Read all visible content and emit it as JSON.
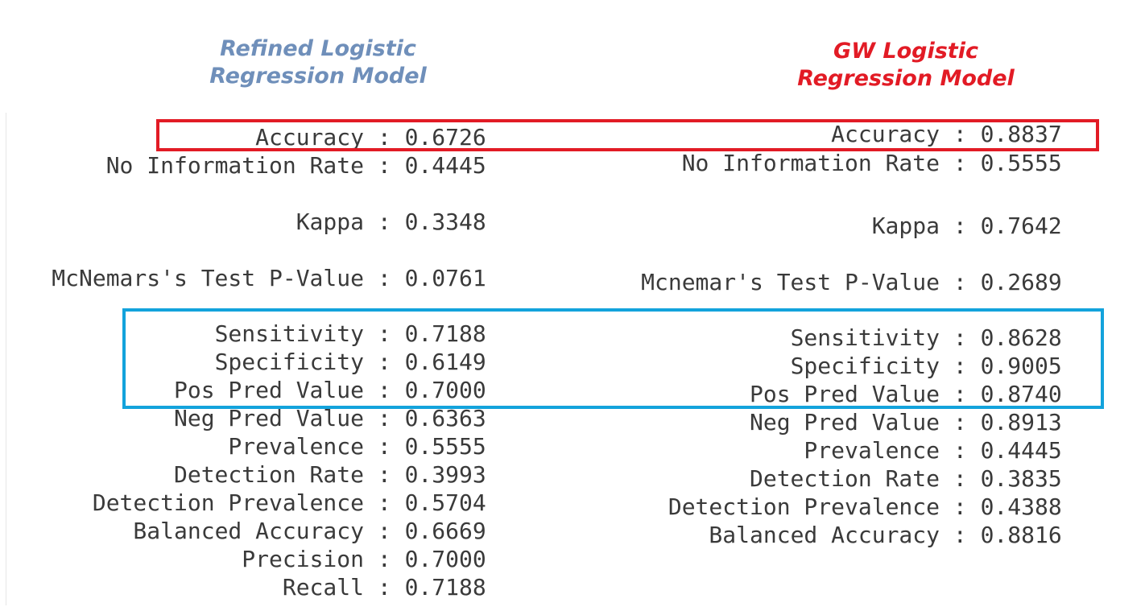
{
  "titles": {
    "left": {
      "line1": "Refined Logistic",
      "line2": "Regression Model",
      "color": "#6f8fba"
    },
    "right": {
      "line1": "GW Logistic",
      "line2": "Regression Model",
      "color": "#e21b25"
    }
  },
  "highlight": {
    "accuracy_color": "#e21b25",
    "sensitivity_color": "#13a3dc"
  },
  "left_model": {
    "rows": [
      {
        "label": "Accuracy",
        "value": "0.6726"
      },
      {
        "label": "No Information Rate",
        "value": "0.4445"
      },
      {
        "label": "Kappa",
        "value": "0.3348"
      },
      {
        "label": "McNemars's Test P-Value",
        "value": "0.0761"
      },
      {
        "label": "Sensitivity",
        "value": "0.7188"
      },
      {
        "label": "Specificity",
        "value": "0.6149"
      },
      {
        "label": "Pos Pred Value",
        "value": "0.7000"
      },
      {
        "label": "Neg Pred Value",
        "value": "0.6363"
      },
      {
        "label": "Prevalence",
        "value": "0.5555"
      },
      {
        "label": "Detection Rate",
        "value": "0.3993"
      },
      {
        "label": "Detection Prevalence",
        "value": "0.5704"
      },
      {
        "label": "Balanced Accuracy",
        "value": "0.6669"
      },
      {
        "label": "Precision",
        "value": "0.7000"
      },
      {
        "label": "Recall",
        "value": "0.7188"
      }
    ]
  },
  "right_model": {
    "rows": [
      {
        "label": "Accuracy",
        "value": "0.8837"
      },
      {
        "label": "No Information Rate",
        "value": "0.5555"
      },
      {
        "label": "Kappa",
        "value": "0.7642"
      },
      {
        "label": "Mcnemar's Test P-Value",
        "value": "0.2689"
      },
      {
        "label": "Sensitivity",
        "value": "0.8628"
      },
      {
        "label": "Specificity",
        "value": "0.9005"
      },
      {
        "label": "Pos Pred Value",
        "value": "0.8740"
      },
      {
        "label": "Neg Pred Value",
        "value": "0.8913"
      },
      {
        "label": "Prevalence",
        "value": "0.4445"
      },
      {
        "label": "Detection Rate",
        "value": "0.3835"
      },
      {
        "label": "Detection Prevalence",
        "value": "0.4388"
      },
      {
        "label": "Balanced Accuracy",
        "value": "0.8816"
      }
    ]
  }
}
